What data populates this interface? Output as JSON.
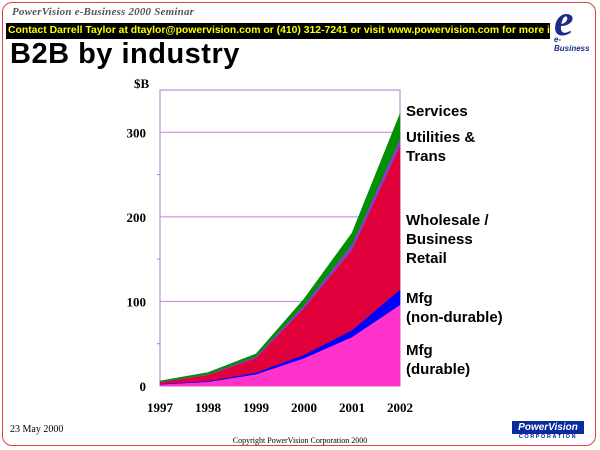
{
  "header": {
    "seminar": "PowerVision e-Business 2000 Seminar",
    "contact": "Contact Darrell Taylor at dtaylor@powervision.com or (410) 312-7241 or visit www.powervision.com for more info",
    "logo_caption": "e-Business",
    "logo_letter": "e"
  },
  "slide": {
    "title": "B2B by industry",
    "date": "23 May 2000",
    "copyright": "Copyright PowerVision Corporation 2000",
    "footer_logo": "PowerVision",
    "footer_logo_sub": "CORPORATION"
  },
  "colors": {
    "durable": "#ff33cc",
    "nondurable": "#0000ff",
    "wholesale": "#e0003c",
    "utilities": "#8040c0",
    "services": "#009000",
    "plot_border": "#b07ad0",
    "grid": "#c080e0"
  },
  "chart_data": {
    "type": "area",
    "stacked": true,
    "ylabel": "$B",
    "xlabel": "",
    "x": [
      1997,
      1998,
      1999,
      2000,
      2001,
      2002
    ],
    "ylim": [
      0,
      350
    ],
    "yticks": [
      0,
      100,
      200,
      300
    ],
    "grid": true,
    "legend": "labels at right of plot",
    "series": [
      {
        "name": "Mfg (durable)",
        "key": "durable",
        "values": [
          2,
          5,
          14,
          33,
          58,
          96
        ]
      },
      {
        "name": "Mfg (non-durable)",
        "key": "nondurable",
        "values": [
          0.5,
          1,
          2,
          4,
          8,
          18
        ]
      },
      {
        "name": "Wholesale / Business Retail",
        "key": "wholesale",
        "values": [
          2,
          7,
          17,
          55,
          95,
          170
        ]
      },
      {
        "name": "Utilities & Trans",
        "key": "utilities",
        "values": [
          0.5,
          1,
          2,
          4,
          7,
          9
        ]
      },
      {
        "name": "Services",
        "key": "services",
        "values": [
          1,
          2,
          3,
          7,
          13,
          29
        ]
      }
    ],
    "series_labels": [
      {
        "key": "services",
        "lines": [
          "Services"
        ]
      },
      {
        "key": "utilities",
        "lines": [
          "Utilities &",
          "Trans"
        ]
      },
      {
        "key": "wholesale",
        "lines": [
          "Wholesale /",
          "Business",
          "Retail"
        ]
      },
      {
        "key": "nondurable",
        "lines": [
          "Mfg",
          "(non-durable)"
        ]
      },
      {
        "key": "durable",
        "lines": [
          "Mfg",
          "(durable)"
        ]
      }
    ]
  }
}
